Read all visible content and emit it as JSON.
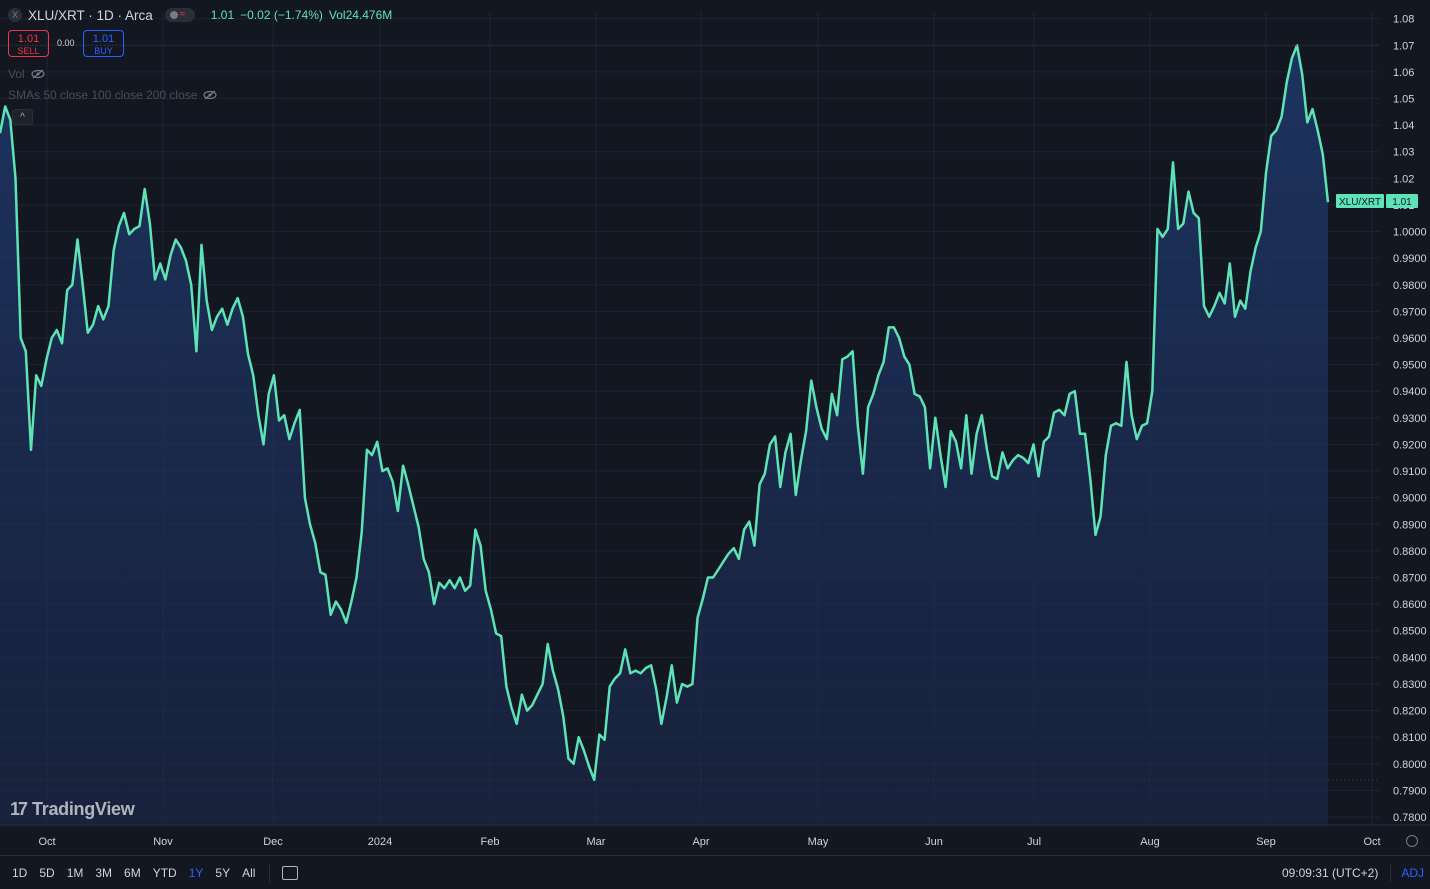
{
  "header": {
    "symbol_icon": "X",
    "title": "XLU/XRT · 1D · Arca",
    "last": "1.01",
    "change": "−0.02 (−1.74%)",
    "volume": "Vol24.476M"
  },
  "trade": {
    "sell_price": "1.01",
    "sell_label": "SELL",
    "spread": "0.00",
    "buy_price": "1.01",
    "buy_label": "BUY"
  },
  "indicators": {
    "vol": "Vol",
    "smas": "SMAs 50 close 100 close 200 close"
  },
  "price_tag": {
    "symbol": "XLU/XRT",
    "value": "1.01"
  },
  "logo": "TradingView",
  "bottom": {
    "ranges": [
      "1D",
      "5D",
      "1M",
      "3M",
      "6M",
      "YTD",
      "1Y",
      "5Y",
      "All"
    ],
    "active_range": "1Y",
    "clock": "09:09:31 (UTC+2)",
    "adj": "ADJ"
  },
  "colors": {
    "line": "#5ee3b6",
    "background": "#131722",
    "grid": "#1f2330",
    "down": "#f23645",
    "accent": "#2962ff"
  },
  "chart_data": {
    "type": "area",
    "y_ticks": [
      "1.08",
      "1.07",
      "1.06",
      "1.05",
      "1.04",
      "1.03",
      "1.02",
      "1.01",
      "1.0000",
      "0.9900",
      "0.9800",
      "0.9700",
      "0.9600",
      "0.9500",
      "0.9400",
      "0.9300",
      "0.9200",
      "0.9100",
      "0.9000",
      "0.8900",
      "0.8800",
      "0.8700",
      "0.8600",
      "0.8500",
      "0.8400",
      "0.8300",
      "0.8200",
      "0.8100",
      "0.8000",
      "0.7900",
      "0.7800"
    ],
    "ylim": [
      0.777,
      1.0825
    ],
    "x_ticks": [
      "Oct",
      "Nov",
      "Dec",
      "2024",
      "Feb",
      "Mar",
      "Apr",
      "May",
      "Jun",
      "Jul",
      "Aug",
      "Sep",
      "Oct"
    ],
    "grid": true,
    "series": [
      {
        "values": [
          1.037,
          1.047,
          1.042,
          1.02,
          0.96,
          0.955,
          0.918,
          0.946,
          0.942,
          0.952,
          0.96,
          0.963,
          0.958,
          0.978,
          0.98,
          0.997,
          0.98,
          0.962,
          0.965,
          0.972,
          0.967,
          0.972,
          0.993,
          1.002,
          1.007,
          0.999,
          1.001,
          1.002,
          1.016,
          1.003,
          0.982,
          0.988,
          0.982,
          0.991,
          0.997,
          0.994,
          0.989,
          0.98,
          0.955,
          0.995,
          0.974,
          0.963,
          0.968,
          0.971,
          0.965,
          0.971,
          0.975,
          0.968,
          0.954,
          0.946,
          0.931,
          0.92,
          0.939,
          0.946,
          0.929,
          0.931,
          0.922,
          0.928,
          0.933,
          0.9,
          0.89,
          0.883,
          0.872,
          0.871,
          0.856,
          0.861,
          0.858,
          0.853,
          0.861,
          0.87,
          0.887,
          0.918,
          0.916,
          0.921,
          0.91,
          0.911,
          0.906,
          0.895,
          0.912,
          0.905,
          0.897,
          0.889,
          0.877,
          0.872,
          0.86,
          0.868,
          0.866,
          0.869,
          0.866,
          0.87,
          0.865,
          0.867,
          0.888,
          0.882,
          0.865,
          0.858,
          0.849,
          0.848,
          0.829,
          0.821,
          0.815,
          0.826,
          0.82,
          0.822,
          0.826,
          0.83,
          0.845,
          0.835,
          0.828,
          0.818,
          0.802,
          0.8,
          0.81,
          0.805,
          0.799,
          0.794,
          0.811,
          0.809,
          0.829,
          0.832,
          0.834,
          0.843,
          0.834,
          0.835,
          0.834,
          0.836,
          0.837,
          0.828,
          0.815,
          0.825,
          0.837,
          0.823,
          0.83,
          0.829,
          0.83,
          0.855,
          0.862,
          0.87,
          0.87,
          0.873,
          0.876,
          0.879,
          0.881,
          0.877,
          0.888,
          0.891,
          0.882,
          0.905,
          0.909,
          0.92,
          0.923,
          0.904,
          0.917,
          0.924,
          0.901,
          0.914,
          0.925,
          0.944,
          0.934,
          0.926,
          0.922,
          0.939,
          0.931,
          0.952,
          0.953,
          0.955,
          0.927,
          0.909,
          0.934,
          0.939,
          0.946,
          0.951,
          0.964,
          0.964,
          0.96,
          0.953,
          0.95,
          0.939,
          0.938,
          0.934,
          0.911,
          0.93,
          0.916,
          0.904,
          0.925,
          0.921,
          0.911,
          0.931,
          0.909,
          0.924,
          0.931,
          0.918,
          0.908,
          0.907,
          0.917,
          0.911,
          0.914,
          0.916,
          0.915,
          0.913,
          0.92,
          0.908,
          0.921,
          0.923,
          0.932,
          0.933,
          0.931,
          0.939,
          0.94,
          0.924,
          0.924,
          0.907,
          0.886,
          0.893,
          0.916,
          0.927,
          0.928,
          0.927,
          0.951,
          0.931,
          0.922,
          0.927,
          0.928,
          0.94,
          1.001,
          0.998,
          1.001,
          1.026,
          1.001,
          1.003,
          1.015,
          1.007,
          1.005,
          0.972,
          0.968,
          0.972,
          0.977,
          0.973,
          0.988,
          0.968,
          0.974,
          0.971,
          0.985,
          0.994,
          1.0,
          1.022,
          1.036,
          1.038,
          1.043,
          1.056,
          1.065,
          1.07,
          1.059,
          1.041,
          1.046,
          1.038,
          1.029,
          1.011
        ]
      }
    ]
  }
}
